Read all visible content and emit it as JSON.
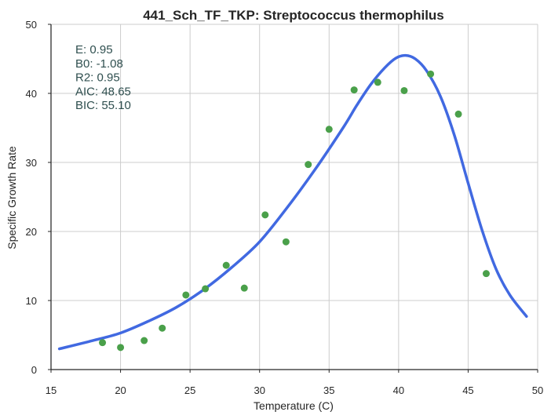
{
  "chart_data": {
    "type": "scatter",
    "title": "441_Sch_TF_TKP: Streptococcus thermophilus",
    "xlabel": "Temperature (C)",
    "ylabel": "Specific Growth Rate",
    "xlim": [
      15,
      50
    ],
    "ylim": [
      0,
      50
    ],
    "xticks": [
      15,
      20,
      25,
      30,
      35,
      40,
      45,
      50
    ],
    "yticks": [
      0,
      10,
      20,
      30,
      40,
      50
    ],
    "grid": true,
    "series": [
      {
        "kind": "points",
        "color": "#4aa04a",
        "points": [
          {
            "x": 18.7,
            "y": 3.9
          },
          {
            "x": 20.0,
            "y": 3.2
          },
          {
            "x": 21.7,
            "y": 4.2
          },
          {
            "x": 23.0,
            "y": 6.0
          },
          {
            "x": 24.7,
            "y": 10.8
          },
          {
            "x": 26.1,
            "y": 11.7
          },
          {
            "x": 27.6,
            "y": 15.1
          },
          {
            "x": 28.9,
            "y": 11.8
          },
          {
            "x": 30.4,
            "y": 22.4
          },
          {
            "x": 31.9,
            "y": 18.5
          },
          {
            "x": 33.5,
            "y": 29.7
          },
          {
            "x": 35.0,
            "y": 34.8
          },
          {
            "x": 36.8,
            "y": 40.5
          },
          {
            "x": 38.5,
            "y": 41.6
          },
          {
            "x": 40.4,
            "y": 40.4
          },
          {
            "x": 42.3,
            "y": 42.8
          },
          {
            "x": 44.3,
            "y": 37.0
          },
          {
            "x": 46.3,
            "y": 13.9
          }
        ]
      },
      {
        "kind": "curve",
        "color": "#4169e1",
        "points": [
          {
            "x": 15.6,
            "y": 3.0
          },
          {
            "x": 18.0,
            "y": 4.2
          },
          {
            "x": 20.0,
            "y": 5.3
          },
          {
            "x": 22.0,
            "y": 7.0
          },
          {
            "x": 24.0,
            "y": 9.0
          },
          {
            "x": 26.0,
            "y": 11.6
          },
          {
            "x": 28.0,
            "y": 14.8
          },
          {
            "x": 30.0,
            "y": 18.5
          },
          {
            "x": 32.0,
            "y": 23.5
          },
          {
            "x": 34.0,
            "y": 29.0
          },
          {
            "x": 36.0,
            "y": 35.0
          },
          {
            "x": 37.0,
            "y": 38.3
          },
          {
            "x": 38.0,
            "y": 41.3
          },
          {
            "x": 39.0,
            "y": 43.7
          },
          {
            "x": 39.8,
            "y": 45.1
          },
          {
            "x": 40.5,
            "y": 45.5
          },
          {
            "x": 41.2,
            "y": 45.0
          },
          {
            "x": 42.0,
            "y": 43.3
          },
          {
            "x": 43.0,
            "y": 39.6
          },
          {
            "x": 44.0,
            "y": 34.0
          },
          {
            "x": 45.0,
            "y": 27.0
          },
          {
            "x": 46.0,
            "y": 20.2
          },
          {
            "x": 47.0,
            "y": 14.6
          },
          {
            "x": 48.0,
            "y": 10.8
          },
          {
            "x": 49.2,
            "y": 7.7
          }
        ]
      }
    ],
    "stats": {
      "color": "#2f4f4f",
      "lines": [
        "E:  0.95",
        "B0:  -1.08",
        "R2:  0.95",
        "AIC: 48.65",
        "BIC: 55.10"
      ]
    }
  }
}
